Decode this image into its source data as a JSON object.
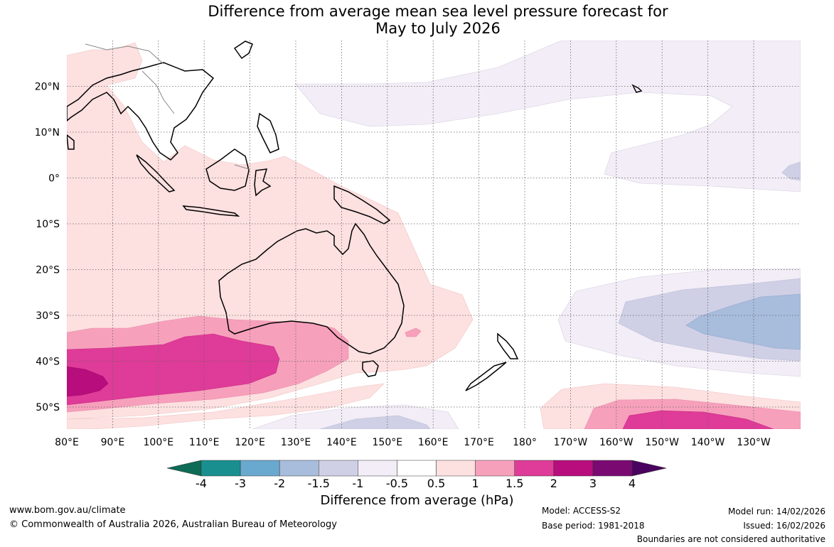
{
  "title": {
    "line1": "Difference from average mean sea level pressure forecast for",
    "line2": "May to July 2026"
  },
  "map": {
    "lat_labels": [
      "20°N",
      "10°N",
      "0°",
      "10°S",
      "20°S",
      "30°S",
      "40°S",
      "50°S"
    ],
    "lon_labels": [
      "80°E",
      "90°E",
      "100°E",
      "110°E",
      "120°E",
      "130°E",
      "140°E",
      "150°E",
      "160°E",
      "170°E",
      "180°",
      "170°W",
      "160°W",
      "150°W",
      "140°W",
      "130°W"
    ]
  },
  "colorbar": {
    "title": "Difference from average (hPa)",
    "tick_labels": [
      "-4",
      "-3",
      "-2",
      "-1.5",
      "-1",
      "-0.5",
      "0.5",
      "1",
      "1.5",
      "2",
      "3",
      "4"
    ],
    "colors": [
      "#1a8f90",
      "#6aa9cf",
      "#a8bcdc",
      "#cfd0e6",
      "#f2edf6",
      "#ffffff",
      "#fde0e0",
      "#f7a0bc",
      "#df3b98",
      "#b80d7c",
      "#7a0a72"
    ],
    "under_color": "#0e6b55",
    "over_color": "#4a045f"
  },
  "footer": {
    "website": "www.bom.gov.au/climate",
    "copyright": "© Commonwealth of Australia 2026, Australian Bureau of Meteorology",
    "model": "Model: ACCESS-S2",
    "base_period": "Base period: 1981-2018",
    "model_run": "Model run: 14/02/2026",
    "issued": "Issued: 16/02/2026",
    "disclaimer": "Boundaries are not considered authoritative"
  }
}
